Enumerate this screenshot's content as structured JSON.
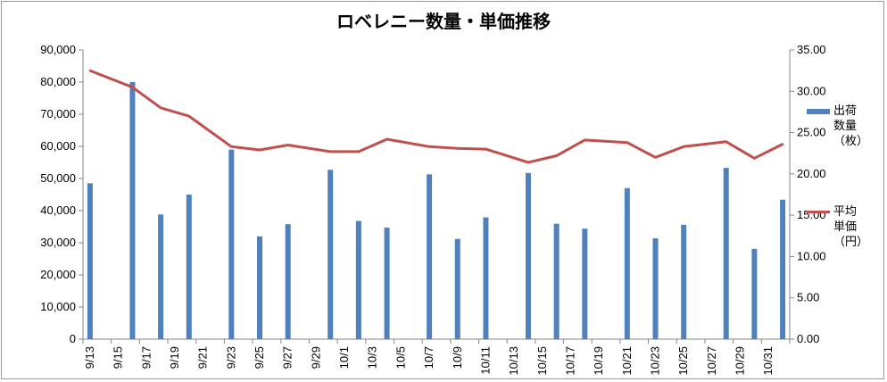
{
  "chart_data": {
    "type": "bar+line",
    "title": "ロベレニー数量・単価推移",
    "x": [
      "9/13",
      "9/14",
      "9/15",
      "9/16",
      "9/17",
      "9/18",
      "9/19",
      "9/20",
      "9/21",
      "9/22",
      "9/23",
      "9/24",
      "9/25",
      "9/26",
      "9/27",
      "9/28",
      "9/29",
      "9/30",
      "10/1",
      "10/2",
      "10/3",
      "10/4",
      "10/5",
      "10/6",
      "10/7",
      "10/8",
      "10/9",
      "10/10",
      "10/11",
      "10/12",
      "10/13",
      "10/14",
      "10/15",
      "10/16",
      "10/17",
      "10/18",
      "10/19",
      "10/20",
      "10/21",
      "10/22",
      "10/23",
      "10/24",
      "10/25",
      "10/26",
      "10/27",
      "10/28",
      "10/29",
      "10/30",
      "10/31",
      "11/1"
    ],
    "tick_labels": [
      "9/13",
      "9/15",
      "9/17",
      "9/19",
      "9/21",
      "9/23",
      "9/25",
      "9/27",
      "9/29",
      "10/1",
      "10/3",
      "10/5",
      "10/7",
      "10/9",
      "10/11",
      "10/13",
      "10/15",
      "10/17",
      "10/19",
      "10/21",
      "10/23",
      "10/25",
      "10/27",
      "10/29",
      "10/31"
    ],
    "series": [
      {
        "name": "出荷\n数量\n（枚）",
        "type": "bar",
        "axis": "left",
        "color": "#4f81bd",
        "points": [
          {
            "x": "9/13",
            "y": 48500
          },
          {
            "x": "9/16",
            "y": 80000
          },
          {
            "x": "9/18",
            "y": 38800
          },
          {
            "x": "9/20",
            "y": 45000
          },
          {
            "x": "9/23",
            "y": 59000
          },
          {
            "x": "9/25",
            "y": 32000
          },
          {
            "x": "9/27",
            "y": 35800
          },
          {
            "x": "9/30",
            "y": 52700
          },
          {
            "x": "10/2",
            "y": 36800
          },
          {
            "x": "10/4",
            "y": 34700
          },
          {
            "x": "10/7",
            "y": 51300
          },
          {
            "x": "10/9",
            "y": 31200
          },
          {
            "x": "10/11",
            "y": 37900
          },
          {
            "x": "10/14",
            "y": 51700
          },
          {
            "x": "10/16",
            "y": 35900
          },
          {
            "x": "10/18",
            "y": 34400
          },
          {
            "x": "10/21",
            "y": 47000
          },
          {
            "x": "10/23",
            "y": 31400
          },
          {
            "x": "10/25",
            "y": 35600
          },
          {
            "x": "10/28",
            "y": 53300
          },
          {
            "x": "10/30",
            "y": 28100
          },
          {
            "x": "11/1",
            "y": 43400
          }
        ]
      },
      {
        "name": "平均\n単価\n（円）",
        "type": "line",
        "axis": "right",
        "color": "#c0504d",
        "points": [
          {
            "x": "9/13",
            "y": 32.5
          },
          {
            "x": "9/16",
            "y": 30.5
          },
          {
            "x": "9/18",
            "y": 28.0
          },
          {
            "x": "9/20",
            "y": 27.0
          },
          {
            "x": "9/23",
            "y": 23.3
          },
          {
            "x": "9/25",
            "y": 22.9
          },
          {
            "x": "9/27",
            "y": 23.5
          },
          {
            "x": "9/30",
            "y": 22.7
          },
          {
            "x": "10/2",
            "y": 22.7
          },
          {
            "x": "10/4",
            "y": 24.2
          },
          {
            "x": "10/7",
            "y": 23.3
          },
          {
            "x": "10/9",
            "y": 23.1
          },
          {
            "x": "10/11",
            "y": 23.0
          },
          {
            "x": "10/14",
            "y": 21.4
          },
          {
            "x": "10/16",
            "y": 22.2
          },
          {
            "x": "10/18",
            "y": 24.1
          },
          {
            "x": "10/21",
            "y": 23.8
          },
          {
            "x": "10/23",
            "y": 22.0
          },
          {
            "x": "10/25",
            "y": 23.3
          },
          {
            "x": "10/28",
            "y": 23.9
          },
          {
            "x": "10/30",
            "y": 21.9
          },
          {
            "x": "11/1",
            "y": 23.6
          }
        ]
      }
    ],
    "y_left": {
      "min": 0,
      "max": 90000,
      "ticks": [
        "0",
        "10,000",
        "20,000",
        "30,000",
        "40,000",
        "50,000",
        "60,000",
        "70,000",
        "80,000",
        "90,000"
      ]
    },
    "y_right": {
      "min": 0,
      "max": 35,
      "ticks": [
        "0.00",
        "5.00",
        "10.00",
        "15.00",
        "20.00",
        "25.00",
        "30.00",
        "35.00"
      ]
    },
    "grid": false,
    "legend_position": "right"
  }
}
